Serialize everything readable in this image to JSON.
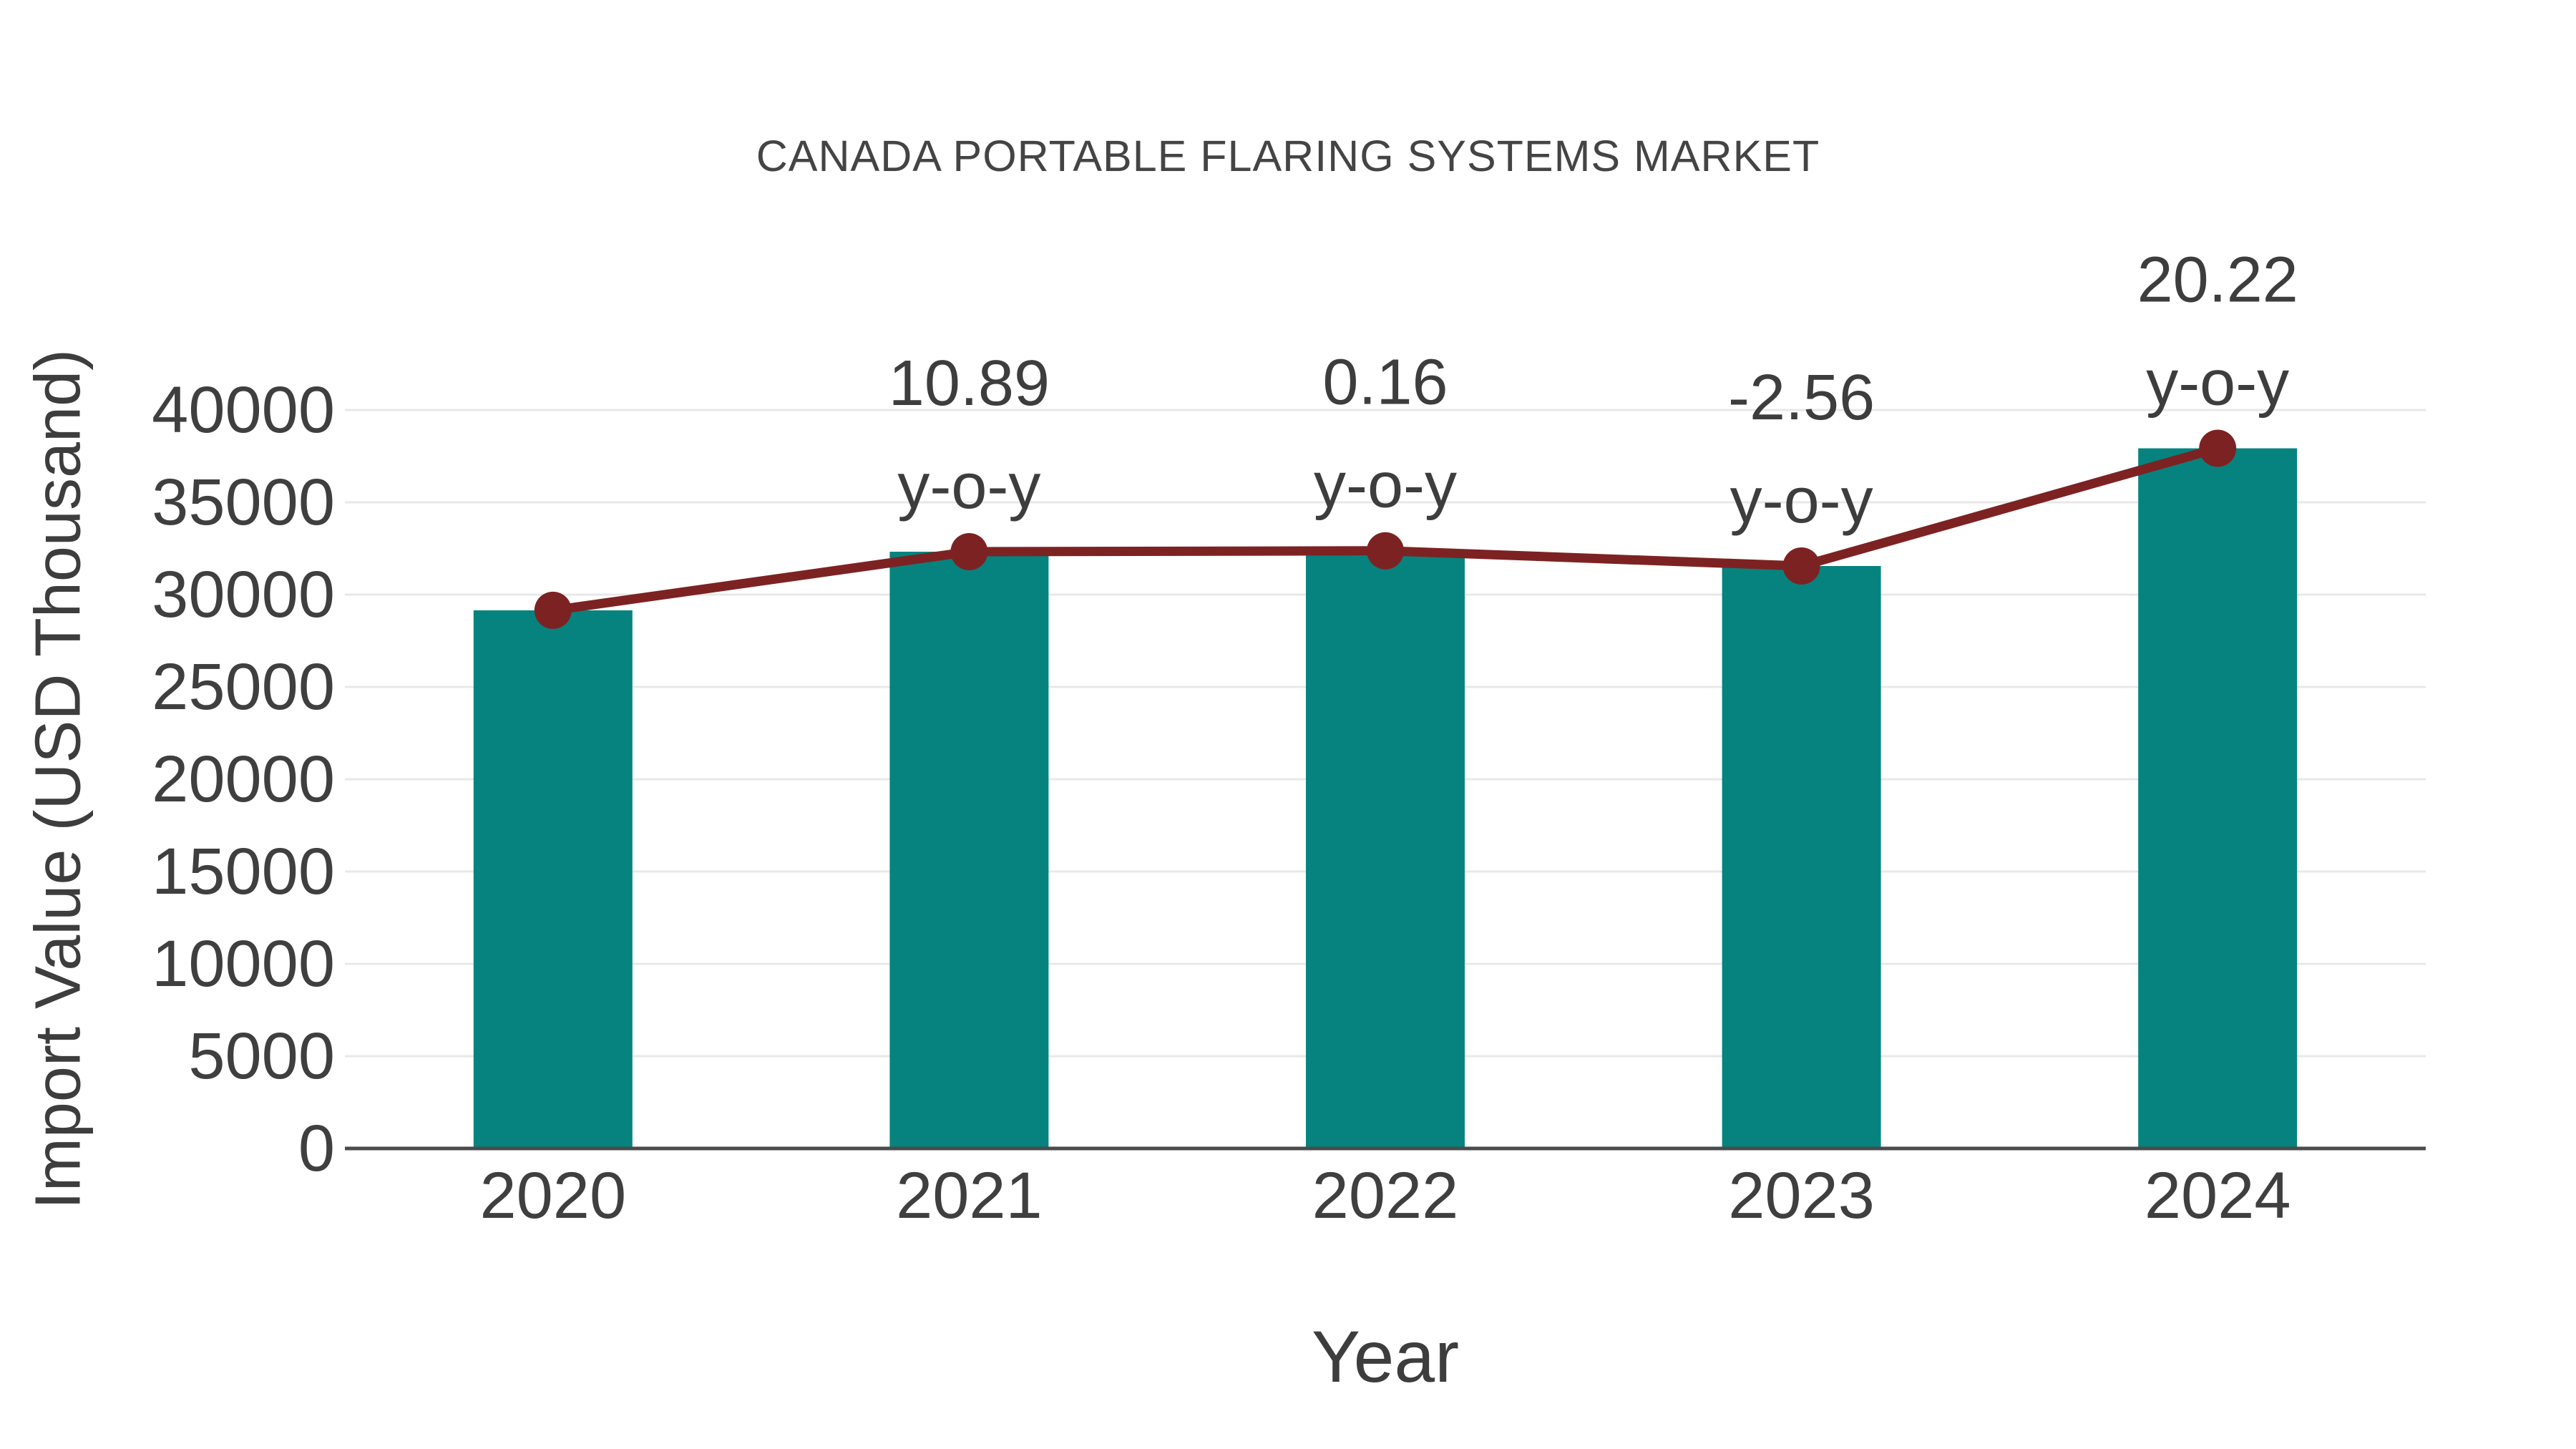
{
  "title": "CANADA PORTABLE FLARING SYSTEMS MARKET",
  "chart_data": {
    "type": "bar",
    "title": "CANADA PORTABLE FLARING SYSTEMS MARKET",
    "xlabel": "Year",
    "ylabel": "Import Value (USD Thousand)",
    "categories": [
      "2020",
      "2021",
      "2022",
      "2023",
      "2024"
    ],
    "series": [
      {
        "name": "Import Value (USD Thousand)",
        "type": "bar",
        "values": [
          29150,
          32325,
          32375,
          31550,
          37925
        ]
      },
      {
        "name": "y-o-y change (%)",
        "type": "line-overlay-at-bar-tops",
        "values": [
          null,
          10.89,
          0.16,
          -2.56,
          20.22
        ]
      }
    ],
    "annotations": [
      {
        "category": "2021",
        "value_label": "10.89",
        "suffix": "y-o-y"
      },
      {
        "category": "2022",
        "value_label": "0.16",
        "suffix": "y-o-y"
      },
      {
        "category": "2023",
        "value_label": "-2.56",
        "suffix": "y-o-y"
      },
      {
        "category": "2024",
        "value_label": "20.22",
        "suffix": "y-o-y"
      }
    ],
    "ylim": [
      0,
      40000
    ],
    "ytick_step": 5000,
    "yticks": [
      0,
      5000,
      10000,
      15000,
      20000,
      25000,
      30000,
      35000,
      40000
    ],
    "grid": true,
    "legend_position": "none",
    "colors": {
      "bar": "#06837f",
      "line": "#7d2222",
      "marker": "#7d2222",
      "grid": "#e8e8e8",
      "axis_line": "#4a4a4a",
      "tick_text": "#3f3f3f",
      "annotation_text": "#3d3d3d",
      "title_text": "#444444",
      "background": "#ffffff"
    }
  }
}
